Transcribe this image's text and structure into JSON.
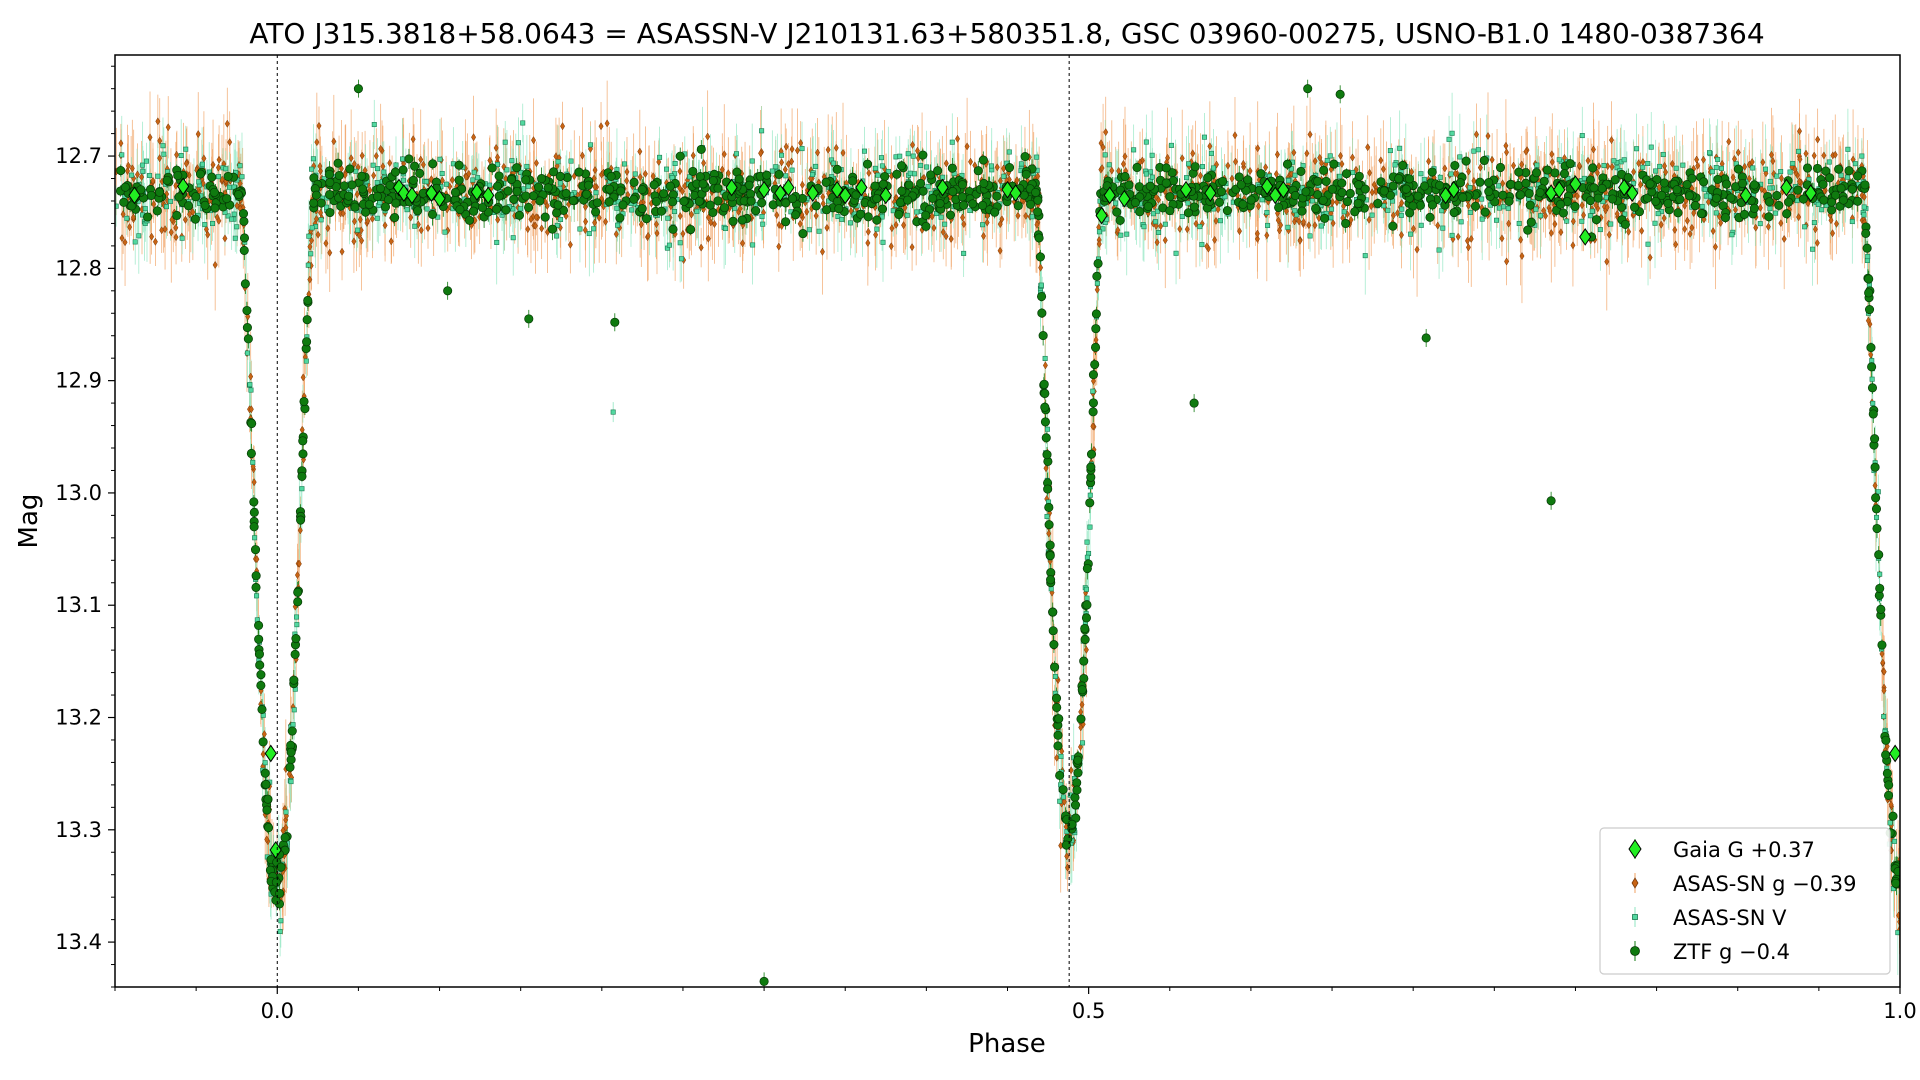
{
  "chart_data": {
    "type": "scatter",
    "title": "ATO J315.3818+58.0643 = ASASSN-V J210131.63+580351.8, GSC 03960-00275, USNO-B1.0 1480-0387364",
    "xlabel": "Phase",
    "ylabel": "Mag",
    "xlim": [
      -0.1,
      1.0
    ],
    "ylim": [
      13.44,
      12.61
    ],
    "y_inverted": true,
    "xticks": [
      0.0,
      0.5,
      1.0
    ],
    "xtick_labels": [
      "0.0",
      "0.5",
      "1.0"
    ],
    "yticks": [
      12.7,
      12.8,
      12.9,
      13.0,
      13.1,
      13.2,
      13.3,
      13.4
    ],
    "ytick_labels": [
      "12.7",
      "12.8",
      "12.9",
      "13.0",
      "13.1",
      "13.2",
      "13.3",
      "13.4"
    ],
    "grid": false,
    "legend_position": "bottom-right",
    "reference_lines_x": [
      0.0,
      0.488
    ],
    "light_curve_model": {
      "baseline_mag": 12.733,
      "primary_eclipse": {
        "phase": 0.0,
        "depth_mag": 0.62,
        "half_width_phase": 0.022
      },
      "secondary_eclipse": {
        "phase": 0.488,
        "depth_mag": 0.57,
        "half_width_phase": 0.02
      }
    },
    "series": [
      {
        "name": "Gaia G +0.37",
        "marker": "diamond",
        "color": "#22ee22",
        "edge": "#000000"
      },
      {
        "name": "ASAS-SN g −0.39",
        "marker": "thin-diamond",
        "color": "#c86414",
        "edge": "#7a3a0a"
      },
      {
        "name": "ASAS-SN V",
        "marker": "square",
        "color": "#52d8a0",
        "edge": "#1a7a50"
      },
      {
        "name": "ZTF g −0.4",
        "marker": "circle",
        "color": "#0f7a0f",
        "edge": "#053805"
      }
    ],
    "outliers": [
      {
        "series": 3,
        "x": 0.3,
        "y": 13.435
      },
      {
        "series": 3,
        "x": 0.155,
        "y": 12.845
      },
      {
        "series": 3,
        "x": 0.208,
        "y": 12.848
      },
      {
        "series": 3,
        "x": 0.105,
        "y": 12.82
      },
      {
        "series": 3,
        "x": 0.565,
        "y": 12.92
      },
      {
        "series": 3,
        "x": 0.708,
        "y": 12.862
      },
      {
        "series": 3,
        "x": 0.785,
        "y": 13.007
      },
      {
        "series": 3,
        "x": 0.05,
        "y": 12.64
      },
      {
        "series": 3,
        "x": 0.635,
        "y": 12.64
      },
      {
        "series": 3,
        "x": 0.655,
        "y": 12.645
      },
      {
        "series": 2,
        "x": 0.207,
        "y": 12.928
      },
      {
        "series": 0,
        "x": 0.806,
        "y": 12.772
      }
    ],
    "gaia_points": [
      [
        -0.088,
        12.735
      ],
      [
        -0.058,
        12.727
      ],
      [
        0.075,
        12.728
      ],
      [
        0.078,
        12.733
      ],
      [
        0.083,
        12.735
      ],
      [
        0.095,
        12.733
      ],
      [
        0.1,
        12.738
      ],
      [
        0.123,
        12.732
      ],
      [
        0.13,
        12.735
      ],
      [
        0.28,
        12.728
      ],
      [
        0.3,
        12.73
      ],
      [
        0.31,
        12.733
      ],
      [
        0.315,
        12.728
      ],
      [
        0.33,
        12.733
      ],
      [
        0.345,
        12.73
      ],
      [
        0.35,
        12.735
      ],
      [
        0.36,
        12.728
      ],
      [
        0.375,
        12.735
      ],
      [
        0.41,
        12.728
      ],
      [
        0.45,
        12.73
      ],
      [
        0.455,
        12.733
      ],
      [
        -0.004,
        13.232
      ],
      [
        -0.001,
        13.318
      ],
      [
        0.508,
        12.753
      ],
      [
        0.513,
        12.735
      ],
      [
        0.522,
        12.738
      ],
      [
        0.56,
        12.73
      ],
      [
        0.575,
        12.733
      ],
      [
        0.61,
        12.727
      ],
      [
        0.615,
        12.735
      ],
      [
        0.62,
        12.73
      ],
      [
        0.72,
        12.735
      ],
      [
        0.725,
        12.73
      ],
      [
        0.785,
        12.733
      ],
      [
        0.79,
        12.73
      ],
      [
        0.8,
        12.725
      ],
      [
        0.83,
        12.728
      ],
      [
        0.835,
        12.733
      ],
      [
        0.905,
        12.735
      ],
      [
        0.93,
        12.728
      ],
      [
        0.945,
        12.733
      ],
      [
        0.997,
        13.232
      ]
    ]
  }
}
